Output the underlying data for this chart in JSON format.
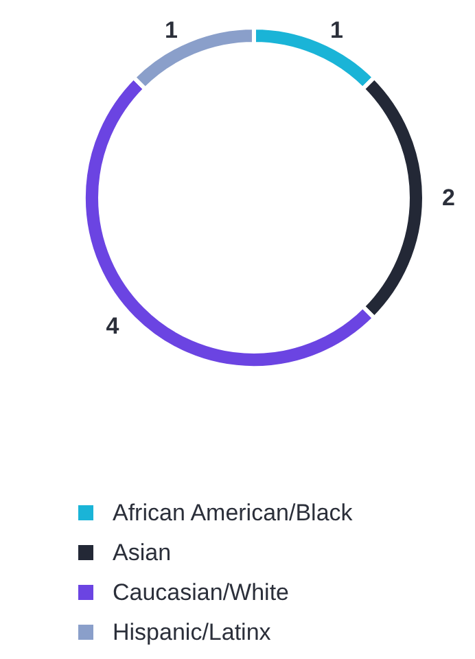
{
  "chart_data": {
    "type": "donut",
    "categories": [
      "African American/Black",
      "Asian",
      "Caucasian/White",
      "Hispanic/Latinx"
    ],
    "values": [
      1,
      2,
      4,
      1
    ],
    "colors": [
      "#1ab4d7",
      "#232836",
      "#6b44e2",
      "#8a9fca"
    ],
    "data_labels": true,
    "legend": "bottom"
  }
}
